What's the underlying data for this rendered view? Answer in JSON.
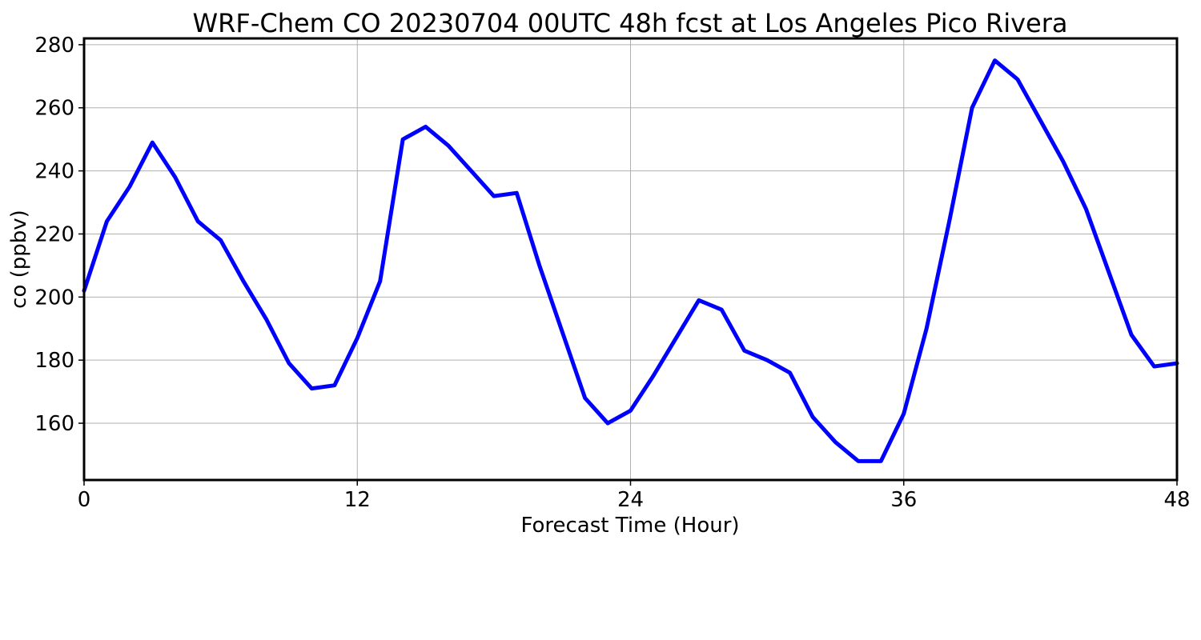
{
  "chart_data": {
    "type": "line",
    "title": "WRF-Chem CO  20230704 00UTC 48h fcst at Los Angeles Pico Rivera",
    "xlabel": "Forecast Time (Hour)",
    "ylabel": "co  (ppbv)",
    "xlim": [
      0,
      48
    ],
    "ylim": [
      142,
      282
    ],
    "xticks": [
      0,
      12,
      24,
      36,
      48
    ],
    "yticks": [
      160,
      180,
      200,
      220,
      240,
      260,
      280
    ],
    "grid": true,
    "legend": "none",
    "series": [
      {
        "color": "#0000ff",
        "x": [
          0,
          1,
          2,
          3,
          4,
          5,
          6,
          7,
          8,
          9,
          10,
          11,
          12,
          13,
          14,
          15,
          16,
          17,
          18,
          19,
          20,
          21,
          22,
          23,
          24,
          25,
          26,
          27,
          28,
          29,
          30,
          31,
          32,
          33,
          34,
          35,
          36,
          37,
          38,
          39,
          40,
          41,
          42,
          43,
          44,
          45,
          46,
          47,
          48
        ],
        "y": [
          202,
          224,
          235,
          249,
          238,
          224,
          218,
          205,
          193,
          179,
          171,
          172,
          187,
          205,
          250,
          254,
          248,
          240,
          232,
          233,
          210,
          189,
          168,
          160,
          164,
          175,
          187,
          199,
          196,
          183,
          180,
          176,
          162,
          154,
          148,
          148,
          163,
          190,
          224,
          260,
          275,
          269,
          256,
          243,
          228,
          208,
          188,
          178,
          179
        ]
      }
    ]
  }
}
